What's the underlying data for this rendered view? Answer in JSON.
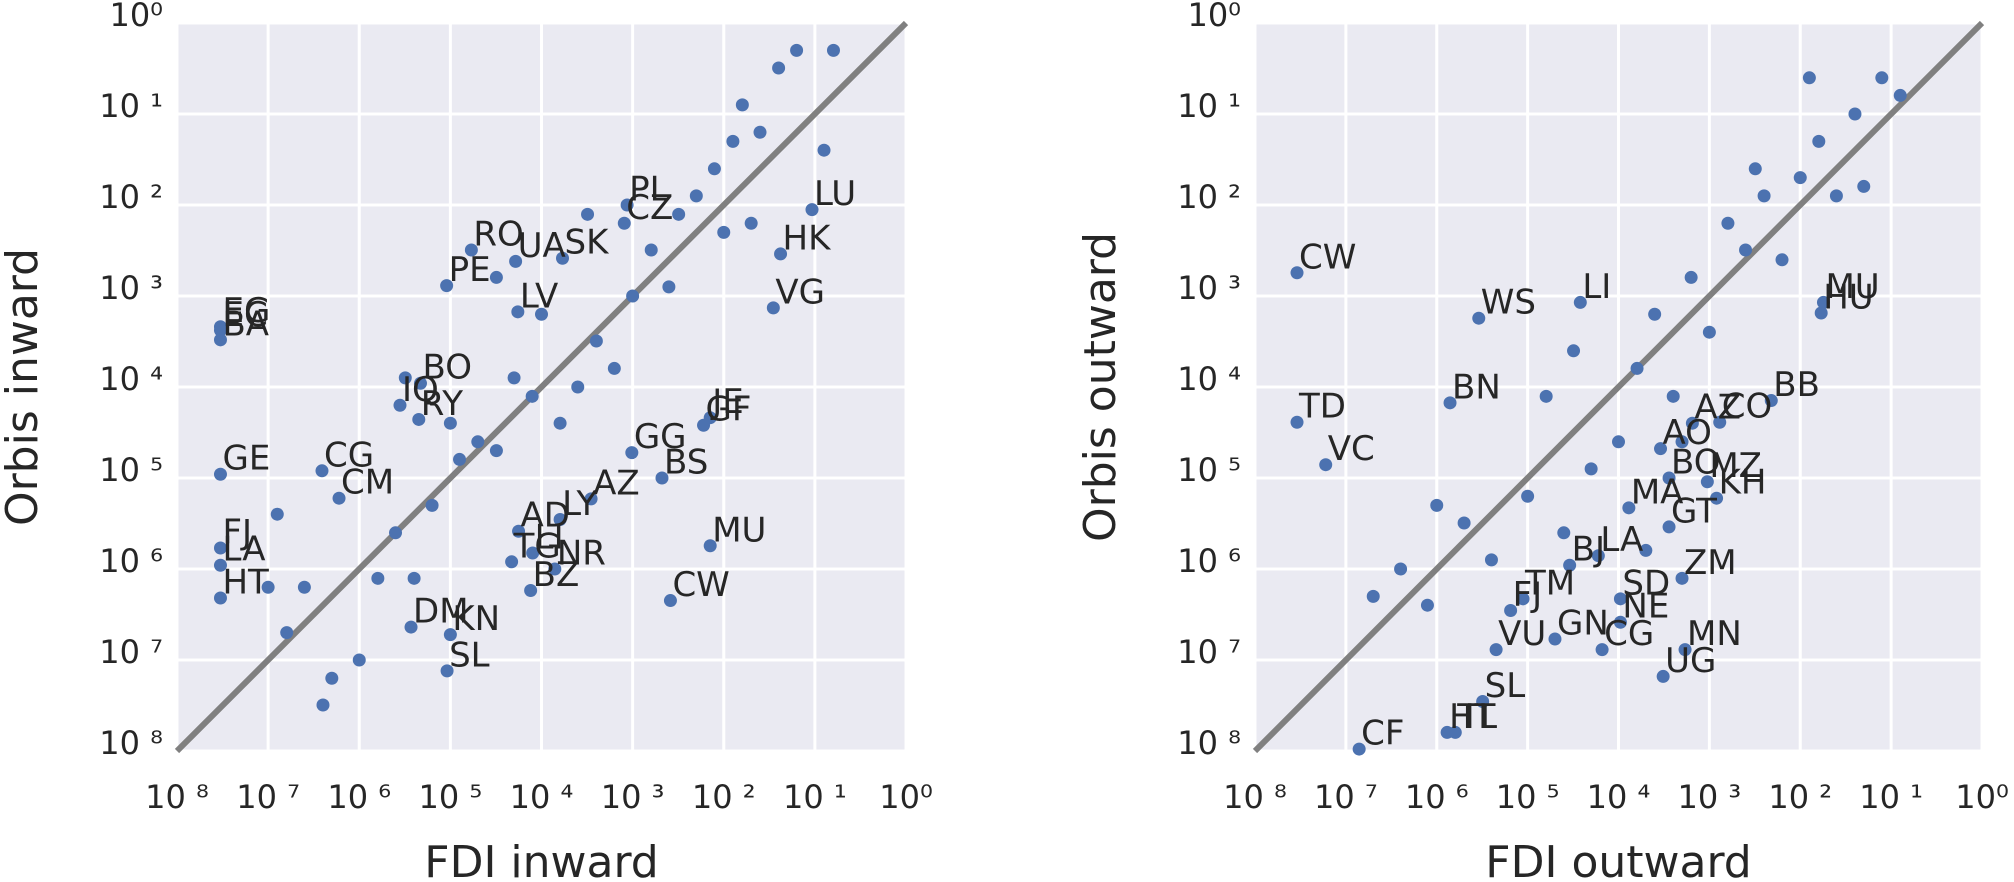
{
  "chart_data": [
    {
      "type": "scatter",
      "xlabel": "FDI inward",
      "ylabel": "Orbis inward",
      "log": true,
      "grid": true,
      "color": "#4c72b0",
      "identity_line_color": "#808080",
      "xlim": [
        1e-08,
        1
      ],
      "ylim": [
        1e-08,
        1
      ],
      "xticks": [
        {
          "value": 1e-08,
          "label": "10 ⁸"
        },
        {
          "value": 1e-07,
          "label": "10 ⁷"
        },
        {
          "value": 1e-06,
          "label": "10 ⁶"
        },
        {
          "value": 1e-05,
          "label": "10 ⁵"
        },
        {
          "value": 0.0001,
          "label": "10 ⁴"
        },
        {
          "value": 0.001,
          "label": "10 ³"
        },
        {
          "value": 0.01,
          "label": "10 ²"
        },
        {
          "value": 0.1,
          "label": "10 ¹"
        },
        {
          "value": 1,
          "label": "10⁰"
        }
      ],
      "yticks": [
        {
          "value": 1e-08,
          "label": "10 ⁸"
        },
        {
          "value": 1e-07,
          "label": "10 ⁷"
        },
        {
          "value": 1e-06,
          "label": "10 ⁶"
        },
        {
          "value": 1e-05,
          "label": "10 ⁵"
        },
        {
          "value": 0.0001,
          "label": "10 ⁴"
        },
        {
          "value": 0.001,
          "label": "10 ³"
        },
        {
          "value": 0.01,
          "label": "10 ²"
        },
        {
          "value": 0.1,
          "label": "10 ¹"
        },
        {
          "value": 1,
          "label": "10⁰"
        }
      ],
      "labels": [
        "EG",
        "EC",
        "BA",
        "GE",
        "FJ",
        "LA",
        "HT",
        "CG",
        "CM",
        "BO",
        "IQ",
        "RY",
        "RO",
        "UA",
        "PE",
        "SK",
        "LV",
        "PL",
        "CZ",
        "LU",
        "HK",
        "VG",
        "JE",
        "GF",
        "GG",
        "BS",
        "AZ",
        "MU",
        "CW",
        "AD",
        "LY",
        "TG",
        "LI",
        "BZ",
        "NR",
        "DM",
        "KN",
        "SL",
        null,
        null,
        null,
        null,
        null,
        null,
        null,
        null,
        null,
        null,
        null,
        null,
        null,
        null,
        null,
        null,
        null,
        null,
        null,
        null,
        null,
        null,
        null,
        null,
        null,
        null,
        null,
        null,
        null,
        null,
        null,
        null,
        null,
        null,
        null,
        null,
        null,
        null,
        null,
        null
      ],
      "x": [
        3e-08,
        3e-08,
        3e-08,
        3e-08,
        3e-08,
        3e-08,
        3e-08,
        3.9e-07,
        6e-07,
        4.7e-06,
        2.8e-06,
        4.5e-06,
        1.7e-05,
        5.2e-05,
        9.1e-06,
        0.00017,
        5.5e-05,
        0.00087,
        0.00081,
        0.093,
        0.042,
        0.035,
        0.0071,
        0.006,
        0.00098,
        0.0021,
        0.00035,
        0.0071,
        0.0026,
        5.6e-05,
        0.00016,
        4.7e-05,
        8e-05,
        7.6e-05,
        0.00014,
        3.7e-06,
        1e-05,
        9.2e-06,
        1e-07,
        1.6e-07,
        2.5e-07,
        4e-07,
        5e-07,
        1e-06,
        1.6e-06,
        2.5e-06,
        4e-06,
        6.3e-06,
        1e-05,
        1.26e-05,
        2e-05,
        3.2e-05,
        5e-05,
        7.9e-05,
        0.0001,
        0.00016,
        0.00025,
        0.0004,
        0.00063,
        0.001,
        0.0016,
        0.0025,
        0.0032,
        0.005,
        0.0079,
        0.0126,
        0.016,
        0.025,
        0.04,
        0.063,
        0.126,
        0.16,
        0.01,
        0.02,
        0.00032,
        3.2e-05,
        3.2e-06,
        1.26e-07
      ],
      "y": [
        0.00046,
        0.00042,
        0.00033,
        1.1e-05,
        1.7e-06,
        1.1e-06,
        4.8e-07,
        1.2e-05,
        6e-06,
        0.00011,
        6.3e-05,
        4.4e-05,
        0.0032,
        0.0024,
        0.0013,
        0.0026,
        0.00067,
        0.01,
        0.0063,
        0.0089,
        0.0029,
        0.00074,
        4.6e-05,
        3.8e-05,
        1.9e-05,
        1e-05,
        5.9e-06,
        1.8e-06,
        4.5e-07,
        2.6e-06,
        3.5e-06,
        1.2e-06,
        1.5e-06,
        5.8e-07,
        1e-06,
        2.3e-07,
        1.9e-07,
        7.6e-08,
        6.3e-07,
        2e-07,
        6.3e-07,
        3.2e-08,
        6.3e-08,
        1e-07,
        7.9e-07,
        2.5e-06,
        7.9e-07,
        5e-06,
        4e-05,
        1.6e-05,
        2.5e-05,
        2e-05,
        0.000126,
        7.9e-05,
        0.00063,
        4e-05,
        0.0001,
        0.00032,
        0.00016,
        0.001,
        0.0032,
        0.00126,
        0.0079,
        0.0126,
        0.025,
        0.05,
        0.126,
        0.063,
        0.32,
        0.5,
        0.04,
        0.5,
        0.005,
        0.0063,
        0.0079,
        0.0016,
        0.000126,
        4e-06
      ]
    },
    {
      "type": "scatter",
      "xlabel": "FDI outward",
      "ylabel": "Orbis outward",
      "log": true,
      "grid": true,
      "color": "#4c72b0",
      "identity_line_color": "#808080",
      "xlim": [
        1e-08,
        1
      ],
      "ylim": [
        1e-08,
        1
      ],
      "xticks": [
        {
          "value": 1e-08,
          "label": "10 ⁸"
        },
        {
          "value": 1e-07,
          "label": "10 ⁷"
        },
        {
          "value": 1e-06,
          "label": "10 ⁶"
        },
        {
          "value": 1e-05,
          "label": "10 ⁵"
        },
        {
          "value": 0.0001,
          "label": "10 ⁴"
        },
        {
          "value": 0.001,
          "label": "10 ³"
        },
        {
          "value": 0.01,
          "label": "10 ²"
        },
        {
          "value": 0.1,
          "label": "10 ¹"
        },
        {
          "value": 1,
          "label": "10⁰"
        }
      ],
      "yticks": [
        {
          "value": 1e-08,
          "label": "10 ⁸"
        },
        {
          "value": 1e-07,
          "label": "10 ⁷"
        },
        {
          "value": 1e-06,
          "label": "10 ⁶"
        },
        {
          "value": 1e-05,
          "label": "10 ⁵"
        },
        {
          "value": 0.0001,
          "label": "10 ⁴"
        },
        {
          "value": 0.001,
          "label": "10 ³"
        },
        {
          "value": 0.01,
          "label": "10 ²"
        },
        {
          "value": 0.1,
          "label": "10 ¹"
        },
        {
          "value": 1,
          "label": "10⁰"
        }
      ],
      "labels": [
        "CW",
        "WS",
        "LI",
        "TD",
        "VC",
        "BN",
        "MU",
        "HU",
        "BB",
        "AZ",
        "CO",
        "AO",
        "BO",
        "KH",
        "MZ",
        "MA",
        "GT",
        "LA",
        "ZM",
        "BJ",
        "TM",
        "FJ",
        "GN",
        "CG",
        "VU",
        "MN",
        "UG",
        "SL",
        "HT",
        "TL",
        "CF",
        "SD",
        "NE",
        null,
        null,
        null,
        null,
        null,
        null,
        null,
        null,
        null,
        null,
        null,
        null,
        null,
        null,
        null,
        null,
        null,
        null,
        null,
        null,
        null,
        null,
        null,
        null,
        null,
        null,
        null,
        null,
        null,
        null,
        null,
        null
      ],
      "x": [
        2.9e-08,
        2.9e-06,
        3.8e-05,
        2.9e-08,
        6e-08,
        1.4e-06,
        0.018,
        0.017,
        0.0048,
        0.00065,
        0.0013,
        0.00029,
        0.00036,
        0.0012,
        0.00095,
        0.00013,
        0.00036,
        6e-05,
        0.0005,
        2.9e-05,
        8.9e-06,
        6.5e-06,
        2e-05,
        6.6e-05,
        4.5e-06,
        0.00054,
        0.00031,
        3.2e-06,
        1.3e-06,
        1.6e-06,
        1.4e-07,
        0.000105,
        0.000105,
        2e-07,
        4e-07,
        7.9e-07,
        1e-06,
        2e-06,
        4e-06,
        1e-05,
        1.6e-05,
        3.2e-05,
        5e-05,
        0.0001,
        0.00016,
        0.00025,
        0.0004,
        0.00063,
        0.001,
        0.0016,
        0.0025,
        0.004,
        0.0063,
        0.01,
        0.016,
        0.025,
        0.04,
        0.05,
        0.079,
        0.126,
        0.0126,
        0.0032,
        0.0005,
        2.5e-05,
        0.0002
      ],
      "y": [
        0.0018,
        0.00057,
        0.00085,
        4.1e-05,
        1.4e-05,
        6.7e-05,
        0.00085,
        0.00065,
        7.1e-05,
        4e-05,
        4.1e-05,
        2.1e-05,
        1e-05,
        6e-06,
        9.1e-06,
        4.7e-06,
        2.9e-06,
        1.4e-06,
        7.9e-07,
        1.1e-06,
        4.7e-07,
        3.5e-07,
        1.7e-07,
        1.3e-07,
        1.3e-07,
        1.3e-07,
        6.6e-08,
        3.5e-08,
        1.6e-08,
        1.6e-08,
        1.05e-08,
        4.7e-07,
        2.6e-07,
        5e-07,
        1e-06,
        4e-07,
        5e-06,
        3.2e-06,
        1.26e-06,
        6.3e-06,
        7.9e-05,
        0.00025,
        1.26e-05,
        2.5e-05,
        0.00016,
        0.00063,
        7.9e-05,
        0.0016,
        0.0004,
        0.0063,
        0.0032,
        0.0126,
        0.0025,
        0.02,
        0.05,
        0.0126,
        0.1,
        0.016,
        0.25,
        0.16,
        0.25,
        0.025,
        2.5e-05,
        2.5e-06,
        1.6e-06
      ]
    }
  ]
}
